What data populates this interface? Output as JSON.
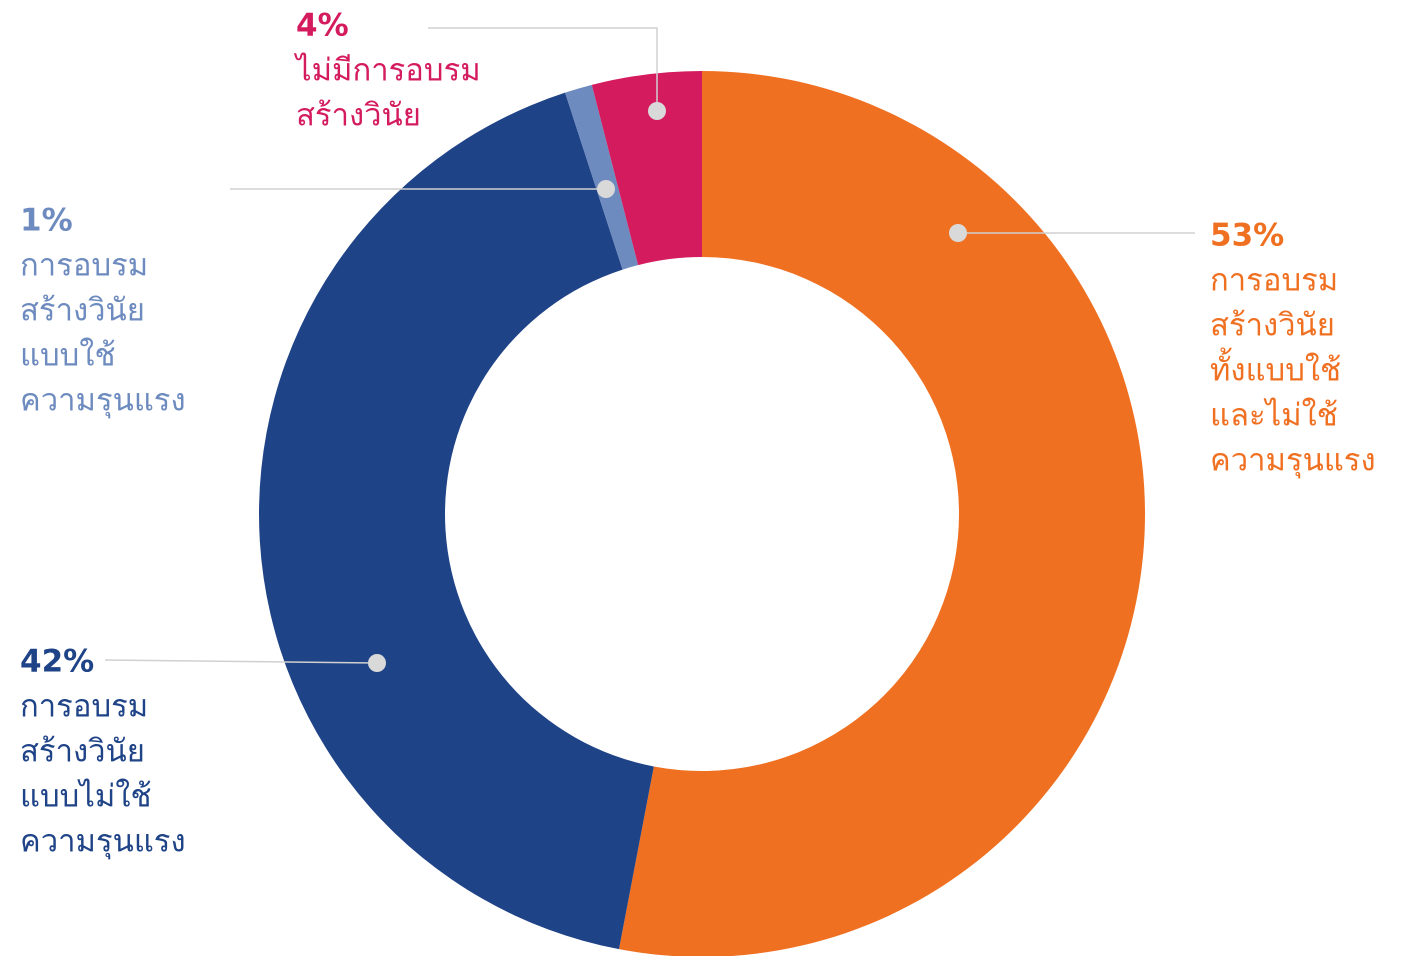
{
  "chart_data": {
    "type": "donut",
    "categories": [
      [
        "การอบรม",
        "สร้างวินัย",
        "ทั้งแบบใช้",
        "และไม่ใช้",
        "ความรุนแรง"
      ],
      [
        "การอบรม",
        "สร้างวินัย",
        "แบบไม่ใช้",
        "ความรุนแรง"
      ],
      [
        "การอบรม",
        "สร้างวินัย",
        "แบบใช้",
        "ความรุนแรง"
      ],
      [
        "ไม่มีการอบรม",
        "สร้างวินัย"
      ]
    ],
    "values": [
      53,
      42,
      1,
      4
    ],
    "value_labels": [
      "53%",
      "42%",
      "1%",
      "4%"
    ],
    "colors": [
      "#f07022",
      "#1f4387",
      "#6e8bbf",
      "#d41b5e"
    ]
  }
}
